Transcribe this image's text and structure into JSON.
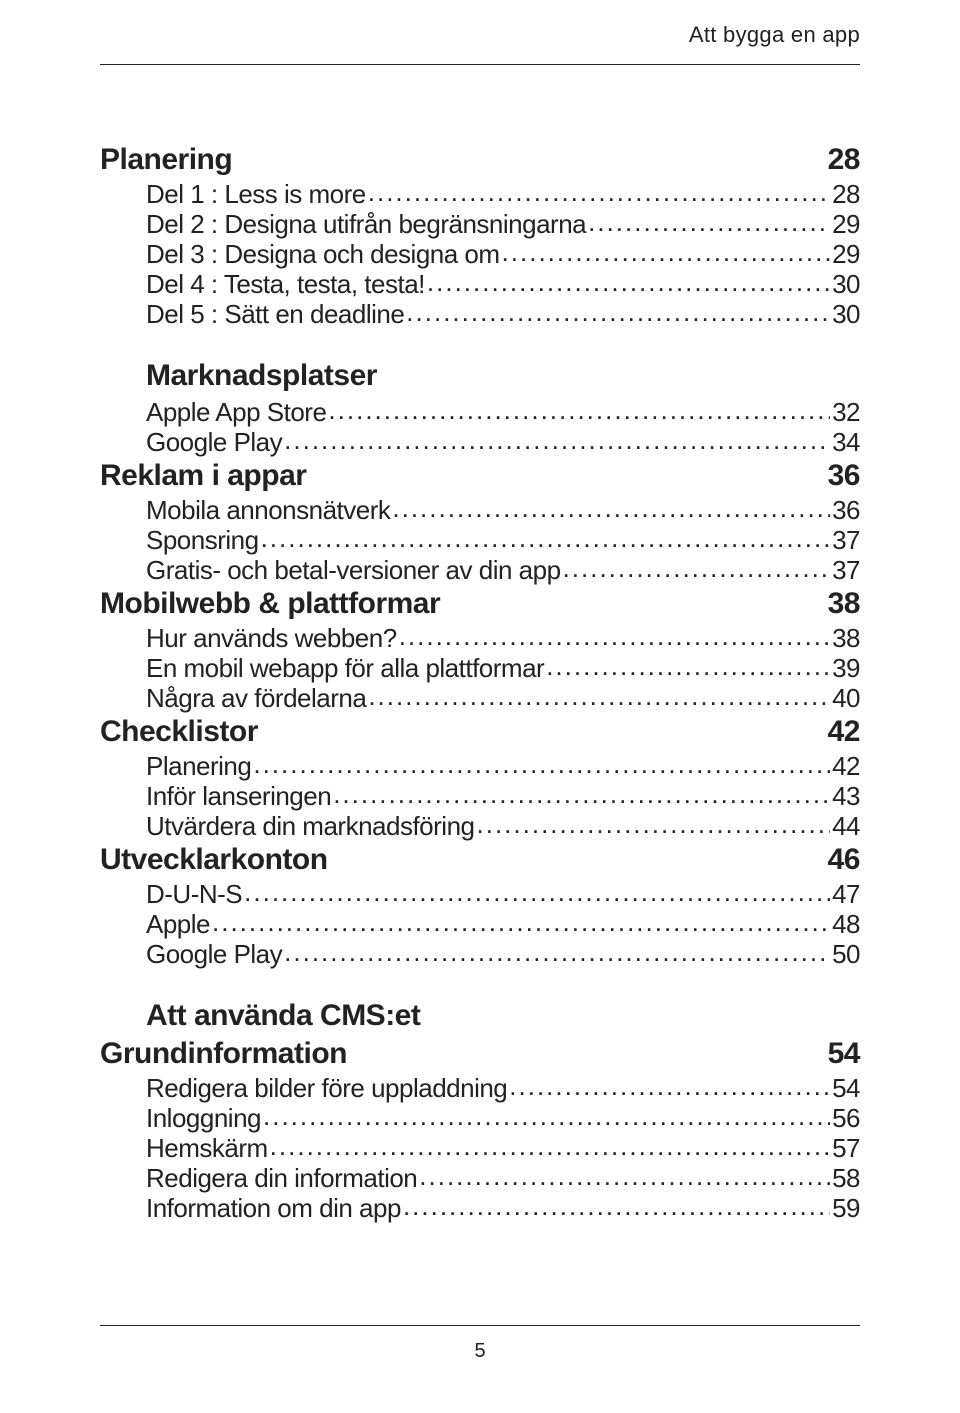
{
  "running_head": "Att bygga en app",
  "page_number": "5",
  "typography": {
    "section_fontsize_pt": 30,
    "section_fontweight": 700,
    "entry_fontsize_pt": 26,
    "entry_fontweight": 300,
    "running_head_fontsize_pt": 22,
    "leader_char": ".",
    "text_color": "#222222",
    "rule_color": "#222222",
    "background_color": "#ffffff",
    "font_family": "condensed sans-serif"
  },
  "toc": {
    "items": [
      {
        "kind": "section",
        "label": "Planering",
        "page": "28"
      },
      {
        "kind": "entry",
        "label": "Del 1  :  Less is more",
        "page": "28"
      },
      {
        "kind": "entry",
        "label": "Del 2  :  Designa utifrån begränsningarna",
        "page": "29"
      },
      {
        "kind": "entry",
        "label": "Del 3  :  Designa och designa om",
        "page": "29"
      },
      {
        "kind": "entry",
        "label": "Del 4  : Testa, testa, testa!",
        "page": "30"
      },
      {
        "kind": "entry",
        "label": "Del 5  : Sätt en deadline",
        "page": "30"
      },
      {
        "kind": "subhead",
        "label": "Marknadsplatser"
      },
      {
        "kind": "entry",
        "label": "Apple App Store",
        "page": "32"
      },
      {
        "kind": "entry",
        "label": "Google Play",
        "page": "34"
      },
      {
        "kind": "section",
        "label": "Reklam i appar",
        "page": "36"
      },
      {
        "kind": "entry",
        "label": "Mobila annonsnätverk",
        "page": "36"
      },
      {
        "kind": "entry",
        "label": "Sponsring",
        "page": "37"
      },
      {
        "kind": "entry",
        "label": "Gratis- och betal-versioner av din app",
        "page": "37"
      },
      {
        "kind": "section",
        "label": "Mobilwebb & plattformar",
        "page": "38"
      },
      {
        "kind": "entry",
        "label": "Hur används webben?",
        "page": "38"
      },
      {
        "kind": "entry",
        "label": "En mobil webapp för alla plattformar",
        "page": "39"
      },
      {
        "kind": "entry",
        "label": "Några av fördelarna",
        "page": "40"
      },
      {
        "kind": "section",
        "label": "Checklistor",
        "page": "42"
      },
      {
        "kind": "entry",
        "label": "Planering",
        "page": "42"
      },
      {
        "kind": "entry",
        "label": "Inför lanseringen",
        "page": "43"
      },
      {
        "kind": "entry",
        "label": "Utvärdera din marknadsföring",
        "page": "44"
      },
      {
        "kind": "section",
        "label": "Utvecklarkonton",
        "page": "46"
      },
      {
        "kind": "entry",
        "label": "D-U-N-S",
        "page": "47"
      },
      {
        "kind": "entry",
        "label": "Apple",
        "page": "48"
      },
      {
        "kind": "entry",
        "label": "Google Play",
        "page": "50"
      },
      {
        "kind": "subhead",
        "label": "Att använda CMS:et"
      },
      {
        "kind": "section",
        "label": "Grundinformation",
        "page": "54"
      },
      {
        "kind": "entry",
        "label": "Redigera bilder före uppladdning",
        "page": "54"
      },
      {
        "kind": "entry",
        "label": "Inloggning",
        "page": "56"
      },
      {
        "kind": "entry",
        "label": "Hemskärm",
        "page": "57"
      },
      {
        "kind": "entry",
        "label": "Redigera din information",
        "page": "58"
      },
      {
        "kind": "entry",
        "label": "Information om din app",
        "page": "59"
      }
    ]
  }
}
